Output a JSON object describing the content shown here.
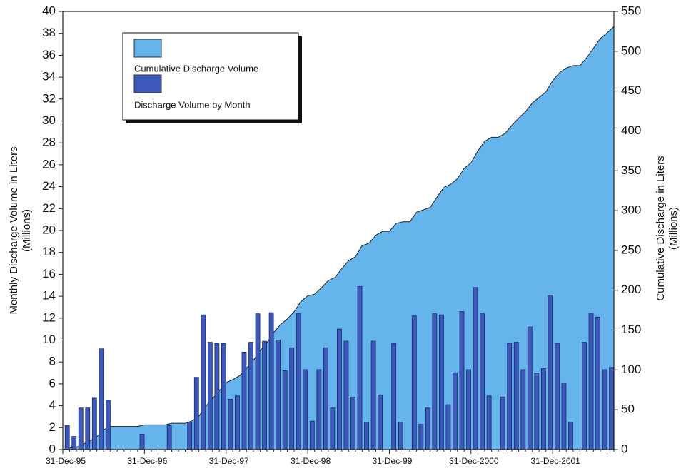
{
  "chart_data": {
    "type": "bar-area",
    "y_label": [
      "Monthly Discharge Volume in Liters",
      "(Millions)"
    ],
    "y2_label": [
      "Cumulative Discharge in Liters",
      "(Millions)"
    ],
    "categories": [
      "31-Dec-95",
      null,
      null,
      null,
      null,
      null,
      null,
      null,
      null,
      null,
      null,
      null,
      "31-Dec-96",
      null,
      null,
      null,
      null,
      null,
      null,
      null,
      null,
      null,
      null,
      null,
      "31-Dec-97",
      null,
      null,
      null,
      null,
      null,
      null,
      null,
      null,
      null,
      null,
      null,
      "31-Dec-98",
      null,
      null,
      null,
      null,
      null,
      null,
      null,
      null,
      null,
      null,
      null,
      "31-Dec-99",
      null,
      null,
      null,
      null,
      null,
      null,
      null,
      null,
      null,
      null,
      null,
      "31-Dec-2000",
      null,
      null,
      null,
      null,
      null,
      null,
      null,
      null,
      null,
      null,
      null,
      "31-Dec-2001",
      null,
      null,
      null,
      null,
      null,
      null,
      null,
      null,
      null
    ],
    "series": [
      {
        "name": "Cumulative Discharge Volume",
        "color": "#66b4ec",
        "kind": "area",
        "axis": "y2",
        "values": [
          0,
          2,
          3,
          7,
          11,
          16,
          25,
          29,
          29,
          29,
          29,
          29,
          31,
          31,
          31,
          31,
          33,
          33,
          33,
          36,
          42,
          54,
          64,
          74,
          84,
          88,
          93,
          102,
          112,
          124,
          134,
          147,
          157,
          164,
          173,
          186,
          193,
          195,
          203,
          212,
          216,
          227,
          237,
          242,
          256,
          259,
          269,
          274,
          274,
          284,
          286,
          286,
          298,
          301,
          304,
          317,
          329,
          333,
          340,
          353,
          360,
          375,
          387,
          392,
          392,
          397,
          407,
          416,
          424,
          435,
          442,
          449,
          463,
          473,
          479,
          482,
          482,
          492,
          504,
          516,
          523,
          531
        ]
      },
      {
        "name": "Discharge Volume by Month",
        "color": "#3c58bb",
        "kind": "bar",
        "values": [
          0,
          2.2,
          1.2,
          3.8,
          3.8,
          4.7,
          9.2,
          4.5,
          0,
          0,
          0,
          0,
          1.4,
          0,
          0,
          0,
          2.2,
          0,
          0,
          2.5,
          6.6,
          12.3,
          9.8,
          9.7,
          9.7,
          4.6,
          4.9,
          8.9,
          9.8,
          12.4,
          9.9,
          12.5,
          10.0,
          7.2,
          9.3,
          12.4,
          7.3,
          2.6,
          7.3,
          9.3,
          3.8,
          11.0,
          9.9,
          4.8,
          14.9,
          2.5,
          9.9,
          5.0,
          0,
          9.7,
          2.5,
          0,
          12.2,
          2.3,
          3.8,
          12.4,
          12.3,
          4.1,
          7.0,
          12.6,
          7.3,
          14.8,
          12.4,
          4.9,
          0,
          4.8,
          9.7,
          9.8,
          7.3,
          11.2,
          7.0,
          7.4,
          14.1,
          9.7,
          6.1,
          2.5,
          0,
          9.8,
          12.4,
          12.1,
          7.3,
          7.5
        ]
      }
    ],
    "ylim": [
      0,
      40
    ],
    "yticks": [
      0,
      2,
      4,
      6,
      8,
      10,
      12,
      14,
      16,
      18,
      20,
      22,
      24,
      26,
      28,
      30,
      32,
      34,
      36,
      38,
      40
    ],
    "y2lim": [
      0,
      550
    ],
    "y2ticks": [
      0,
      50,
      100,
      150,
      200,
      250,
      300,
      350,
      400,
      450,
      500,
      550
    ]
  }
}
